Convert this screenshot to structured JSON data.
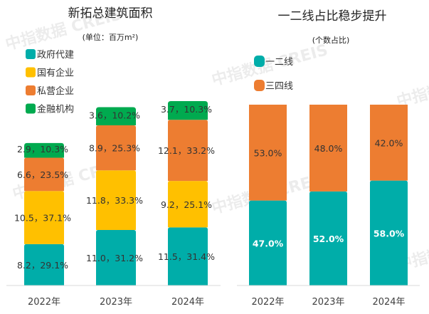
{
  "chart_data": [
    {
      "type": "bar",
      "stacked": true,
      "title": "新拓总建筑面积",
      "subtitle": "(单位：百万m²)",
      "xlabel": "",
      "ylabel": "",
      "categories": [
        "2022年",
        "2023年",
        "2024年"
      ],
      "grid": false,
      "legend_position": "top-left",
      "series": [
        {
          "name": "政府代建",
          "color": "#00ADA9",
          "values": [
            8.2,
            11.0,
            11.5
          ],
          "shares": [
            "29.1%",
            "31.2%",
            "31.4%"
          ],
          "labels": [
            "8.2，29.1%",
            "11.0，31.2%",
            "11.5，31.4%"
          ]
        },
        {
          "name": "国有企业",
          "color": "#FFC000",
          "values": [
            10.5,
            11.8,
            9.2
          ],
          "shares": [
            "37.1%",
            "33.3%",
            "25.1%"
          ],
          "labels": [
            "10.5，37.1%",
            "11.8，33.3%",
            "9.2，25.1%"
          ]
        },
        {
          "name": "私营企业",
          "color": "#ED7D31",
          "values": [
            6.6,
            8.9,
            12.1
          ],
          "shares": [
            "23.5%",
            "25.3%",
            "33.2%"
          ],
          "labels": [
            "6.6，23.5%",
            "8.9，25.3%",
            "12.1，33.2%"
          ]
        },
        {
          "name": "金融机构",
          "color": "#00AA4F",
          "values": [
            2.9,
            3.6,
            3.7
          ],
          "shares": [
            "10.3%",
            "10.2%",
            "10.3%"
          ],
          "labels": [
            "2.9，10.3%",
            "3.6，10.2%",
            "3.7，10.3%"
          ]
        }
      ]
    },
    {
      "type": "bar",
      "stacked": true,
      "percent": true,
      "title": "一二线占比稳步提升",
      "subtitle": "(个数占比)",
      "xlabel": "",
      "ylabel": "",
      "categories": [
        "2022年",
        "2023年",
        "2024年"
      ],
      "ylim": [
        0,
        100
      ],
      "grid": false,
      "legend_position": "top-left",
      "series": [
        {
          "name": "一二线",
          "color": "#00ADA9",
          "values": [
            47.0,
            52.0,
            58.0
          ],
          "labels": [
            "47.0%",
            "52.0%",
            "58.0%"
          ]
        },
        {
          "name": "三四线",
          "color": "#ED7D31",
          "values": [
            53.0,
            48.0,
            42.0
          ],
          "labels": [
            "53.0%",
            "48.0%",
            "42.0%"
          ]
        }
      ]
    }
  ],
  "watermark": "中指数据 CREIS",
  "axis_color": "#D9D9D9"
}
